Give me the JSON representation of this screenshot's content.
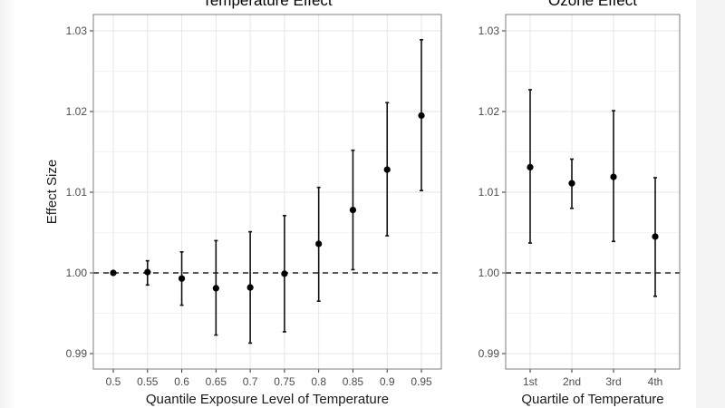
{
  "chart_data": [
    {
      "type": "scatter",
      "title": "Temperature Effect",
      "xlabel": "Quantile Exposure Level of Temperature",
      "ylabel": "Effect Size",
      "ylim": [
        0.988,
        1.032
      ],
      "yticks": [
        "0.99",
        "1.00",
        "1.01",
        "1.02",
        "1.03"
      ],
      "categories": [
        "0.5",
        "0.55",
        "0.6",
        "0.65",
        "0.7",
        "0.75",
        "0.8",
        "0.85",
        "0.9",
        "0.95"
      ],
      "values": [
        1.0,
        1.0001,
        0.9993,
        0.9981,
        0.9982,
        0.9999,
        1.0036,
        1.0078,
        1.0128,
        1.0195
      ],
      "lower": [
        1.0,
        0.9985,
        0.996,
        0.9923,
        0.9913,
        0.9927,
        0.9965,
        1.0004,
        1.0046,
        1.0102
      ],
      "upper": [
        1.0,
        1.0015,
        1.0026,
        1.004,
        1.0051,
        1.0071,
        1.0106,
        1.0152,
        1.0211,
        1.0289
      ],
      "reference_line": 1.0,
      "grid": true
    },
    {
      "type": "scatter",
      "title": "Ozone Effect",
      "xlabel": "Quartile of Temperature",
      "ylabel": "",
      "ylim": [
        0.988,
        1.032
      ],
      "yticks": [
        "0.99",
        "1.00",
        "1.01",
        "1.02",
        "1.03"
      ],
      "categories": [
        "1st",
        "2nd",
        "3rd",
        "4th"
      ],
      "values": [
        1.0131,
        1.0111,
        1.0119,
        1.0045
      ],
      "lower": [
        1.0037,
        1.008,
        1.0039,
        0.9971
      ],
      "upper": [
        1.0227,
        1.0141,
        1.0201,
        1.0118
      ],
      "reference_line": 1.0,
      "grid": true
    }
  ]
}
